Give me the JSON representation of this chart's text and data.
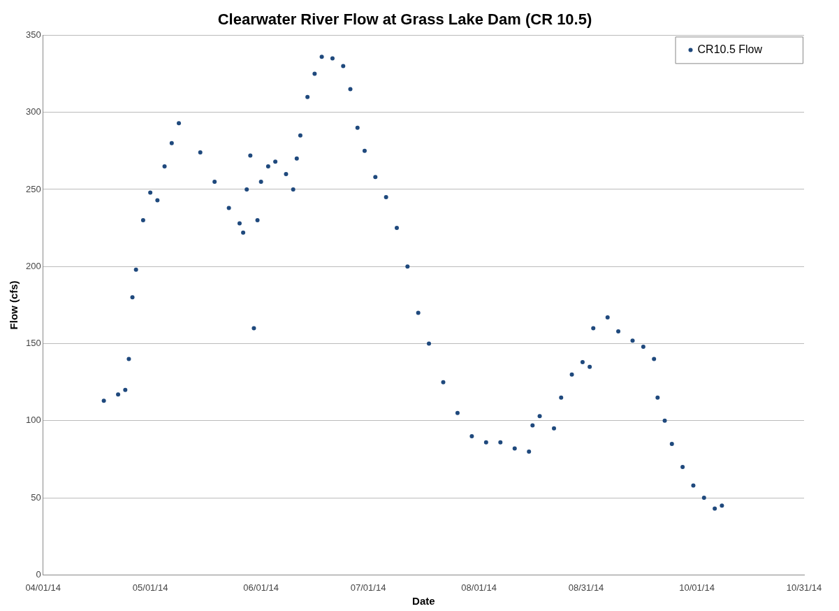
{
  "chart_data": {
    "type": "scatter",
    "title": "Clearwater River Flow at Grass Lake Dam (CR 10.5)",
    "xlabel": "Date",
    "ylabel": "Flow (cfs)",
    "x": [
      "2014-04-18",
      "2014-04-22",
      "2014-04-24",
      "2014-04-25",
      "2014-04-26",
      "2014-04-27",
      "2014-04-29",
      "2014-05-01",
      "2014-05-03",
      "2014-05-05",
      "2014-05-07",
      "2014-05-09",
      "2014-05-15",
      "2014-05-19",
      "2014-05-23",
      "2014-05-26",
      "2014-05-27",
      "2014-05-28",
      "2014-05-29",
      "2014-05-30",
      "2014-05-31",
      "2014-06-01",
      "2014-06-03",
      "2014-06-05",
      "2014-06-08",
      "2014-06-10",
      "2014-06-11",
      "2014-06-12",
      "2014-06-14",
      "2014-06-16",
      "2014-06-18",
      "2014-06-21",
      "2014-06-24",
      "2014-06-26",
      "2014-06-28",
      "2014-06-30",
      "2014-07-03",
      "2014-07-06",
      "2014-07-09",
      "2014-07-12",
      "2014-07-15",
      "2014-07-18",
      "2014-07-22",
      "2014-07-26",
      "2014-07-30",
      "2014-08-03",
      "2014-08-07",
      "2014-08-11",
      "2014-08-15",
      "2014-08-16",
      "2014-08-18",
      "2014-08-22",
      "2014-08-24",
      "2014-08-27",
      "2014-08-30",
      "2014-09-01",
      "2014-09-02",
      "2014-09-06",
      "2014-09-09",
      "2014-09-13",
      "2014-09-16",
      "2014-09-19",
      "2014-09-20",
      "2014-09-22",
      "2014-09-24",
      "2014-09-27",
      "2014-09-30",
      "2014-10-03",
      "2014-10-06",
      "2014-10-08"
    ],
    "series": [
      {
        "name": "CR10.5 Flow",
        "color": "#1f497d",
        "values": [
          113,
          117,
          120,
          140,
          180,
          198,
          230,
          248,
          243,
          265,
          280,
          293,
          274,
          255,
          238,
          228,
          222,
          250,
          272,
          160,
          230,
          255,
          265,
          268,
          260,
          250,
          270,
          285,
          310,
          325,
          336,
          335,
          330,
          315,
          290,
          275,
          258,
          245,
          225,
          200,
          170,
          150,
          125,
          105,
          90,
          86,
          86,
          82,
          80,
          97,
          103,
          95,
          115,
          130,
          138,
          135,
          160,
          167,
          158,
          152,
          148,
          140,
          115,
          100,
          85,
          70,
          58,
          50,
          43,
          45
        ]
      }
    ],
    "xlim": [
      "2014-04-01",
      "2014-10-31"
    ],
    "xticks": [
      {
        "value": "2014-04-01",
        "label": "04/01/14"
      },
      {
        "value": "2014-05-01",
        "label": "05/01/14"
      },
      {
        "value": "2014-06-01",
        "label": "06/01/14"
      },
      {
        "value": "2014-07-01",
        "label": "07/01/14"
      },
      {
        "value": "2014-08-01",
        "label": "08/01/14"
      },
      {
        "value": "2014-08-31",
        "label": "08/31/14"
      },
      {
        "value": "2014-10-01",
        "label": "10/01/14"
      },
      {
        "value": "2014-10-31",
        "label": "10/31/14"
      }
    ],
    "ylim": [
      0,
      350
    ],
    "yticks": [
      0,
      50,
      100,
      150,
      200,
      250,
      300,
      350
    ],
    "grid": "y",
    "legend": "top right",
    "marker": "circle"
  }
}
